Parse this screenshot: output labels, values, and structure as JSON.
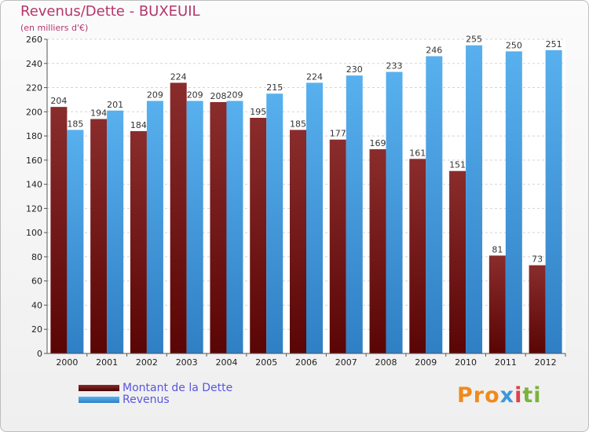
{
  "header": {
    "title": "Revenus/Dette - BUXEUIL",
    "subtitle": "(en milliers d'€)"
  },
  "colors": {
    "dette": "#7a1a1a",
    "revenus": "#4aa3e6",
    "title": "#b5366b",
    "legend_text": "#5a55e0"
  },
  "chart_data": {
    "type": "bar",
    "title": "Revenus/Dette - BUXEUIL",
    "ylabel": "(en milliers d'€)",
    "categories": [
      "2000",
      "2001",
      "2002",
      "2003",
      "2004",
      "2005",
      "2006",
      "2007",
      "2008",
      "2009",
      "2010",
      "2011",
      "2012"
    ],
    "series": [
      {
        "name": "Montant de la Dette",
        "values": [
          204,
          194,
          184,
          224,
          208,
          195,
          185,
          177,
          169,
          161,
          151,
          81,
          73
        ]
      },
      {
        "name": "Revenus",
        "values": [
          185,
          201,
          209,
          209,
          209,
          215,
          224,
          230,
          233,
          246,
          255,
          250,
          251
        ]
      }
    ],
    "ylim": [
      0,
      260
    ],
    "yticks": [
      0,
      20,
      40,
      60,
      80,
      100,
      120,
      140,
      160,
      180,
      200,
      220,
      240,
      260
    ],
    "grid": true,
    "legend": "bottom-left"
  },
  "legend": {
    "items": [
      {
        "label": "Montant de la Dette"
      },
      {
        "label": "Revenus"
      }
    ]
  },
  "logo": {
    "parts": [
      "Pro",
      "x",
      "i",
      "ti"
    ]
  }
}
